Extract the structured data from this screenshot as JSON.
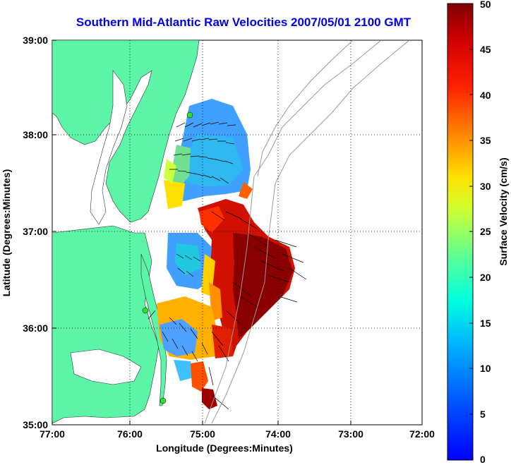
{
  "title": "Southern Mid-Atlantic Raw Velocities 2007/05/01 2100 GMT",
  "axes": {
    "xlabel": "Longitude (Degrees:Minutes)",
    "ylabel": "Latitude (Degrees:Minutes)",
    "xticks": [
      "77:00",
      "76:00",
      "75:00",
      "74:00",
      "73:00",
      "72:00"
    ],
    "yticks": [
      "39:00",
      "38:00",
      "37:00",
      "36:00",
      "35:00"
    ]
  },
  "colorbar": {
    "label": "Surface Velocity (cm/s)",
    "min": 0,
    "max": 50,
    "ticks": [
      "50",
      "45",
      "40",
      "35",
      "30",
      "25",
      "20",
      "15",
      "10",
      "5",
      "0"
    ]
  },
  "colors": {
    "land": "#5cf5a8",
    "water": "#ffffff",
    "title": "#0000ee",
    "station": "#33dd33"
  },
  "stations": [
    {
      "name": "",
      "lat": 38.2,
      "lon": -75.1
    },
    {
      "name": "",
      "lat": 36.2,
      "lon": -75.7
    },
    {
      "name": "",
      "lat": 35.3,
      "lon": -75.5
    }
  ]
}
